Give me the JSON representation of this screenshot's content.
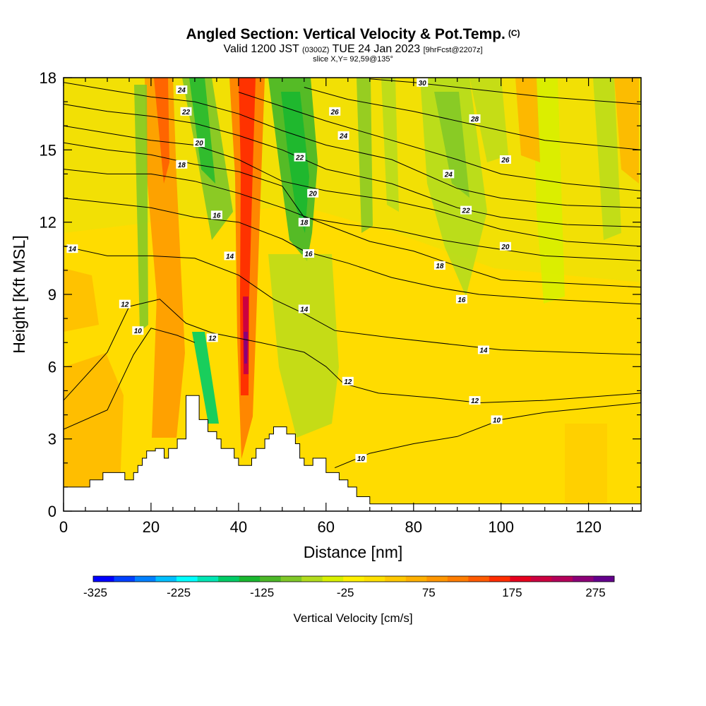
{
  "chart_data": {
    "type": "heatmap",
    "title": "Angled Section: Vertical Velocity & Pot.Temp.",
    "title_tag": "(C)",
    "subtitle": {
      "valid": "Valid 1200 JST",
      "utc": "(0300Z)",
      "date": "TUE 24 Jan 2023",
      "forecast": "[9hrFcst@2207z]"
    },
    "slice_note": "slice X,Y= 92,59@135°",
    "xlabel": "Distance [nm]",
    "ylabel": "Height [Kft MSL]",
    "xlim": [
      0,
      132
    ],
    "ylim": [
      0,
      18
    ],
    "x_ticks": [
      "0",
      "20",
      "40",
      "60",
      "80",
      "100",
      "120"
    ],
    "y_ticks": [
      "0",
      "3",
      "6",
      "9",
      "12",
      "15",
      "18"
    ],
    "colorbar": {
      "label": "Vertical Velocity [cm/s]",
      "range": [
        -325,
        300
      ],
      "step": 25,
      "tick_labels": [
        "-325",
        "-225",
        "-125",
        "-25",
        "75",
        "175",
        "275"
      ],
      "colors": [
        "#0000ff",
        "#0040ff",
        "#0080ff",
        "#00bfff",
        "#00ffff",
        "#00e6b4",
        "#00cc66",
        "#1ab830",
        "#4cb828",
        "#80c828",
        "#b2dc1e",
        "#d8f000",
        "#fff000",
        "#ffe000",
        "#ffc800",
        "#ffb000",
        "#ff9600",
        "#ff7d00",
        "#ff5a00",
        "#ff2d00",
        "#e6001e",
        "#cc0040",
        "#b4005a",
        "#8c0078",
        "#64008c"
      ]
    },
    "terrain": [
      [
        0,
        1.0
      ],
      [
        6,
        1.0
      ],
      [
        6,
        1.3
      ],
      [
        9,
        1.3
      ],
      [
        9,
        1.6
      ],
      [
        14,
        1.6
      ],
      [
        14,
        1.3
      ],
      [
        16,
        1.3
      ],
      [
        16,
        1.6
      ],
      [
        17,
        1.6
      ],
      [
        17,
        1.9
      ],
      [
        18,
        1.9
      ],
      [
        18,
        2.2
      ],
      [
        19,
        2.2
      ],
      [
        19,
        2.5
      ],
      [
        21,
        2.5
      ],
      [
        21,
        2.6
      ],
      [
        23,
        2.6
      ],
      [
        23,
        2.2
      ],
      [
        24,
        2.2
      ],
      [
        24,
        2.6
      ],
      [
        26,
        2.6
      ],
      [
        26,
        3.0
      ],
      [
        28,
        3.0
      ],
      [
        28,
        4.8
      ],
      [
        31,
        4.8
      ],
      [
        31,
        3.8
      ],
      [
        33,
        3.8
      ],
      [
        33,
        3.3
      ],
      [
        35,
        3.3
      ],
      [
        35,
        3.0
      ],
      [
        36,
        3.0
      ],
      [
        36,
        2.6
      ],
      [
        39,
        2.6
      ],
      [
        39,
        2.2
      ],
      [
        40,
        2.2
      ],
      [
        40,
        1.9
      ],
      [
        43,
        1.9
      ],
      [
        43,
        2.2
      ],
      [
        44,
        2.2
      ],
      [
        44,
        2.6
      ],
      [
        46,
        2.6
      ],
      [
        46,
        3.0
      ],
      [
        47,
        3.0
      ],
      [
        47,
        3.2
      ],
      [
        48,
        3.2
      ],
      [
        48,
        3.5
      ],
      [
        51,
        3.5
      ],
      [
        51,
        3.2
      ],
      [
        53,
        3.2
      ],
      [
        53,
        2.8
      ],
      [
        54,
        2.8
      ],
      [
        54,
        2.2
      ],
      [
        55,
        2.2
      ],
      [
        55,
        1.9
      ],
      [
        57,
        1.9
      ],
      [
        57,
        2.2
      ],
      [
        60,
        2.2
      ],
      [
        60,
        1.6
      ],
      [
        63,
        1.6
      ],
      [
        63,
        1.3
      ],
      [
        65,
        1.3
      ],
      [
        65,
        1.0
      ],
      [
        67,
        1.0
      ],
      [
        67,
        0.6
      ],
      [
        70,
        0.6
      ],
      [
        70,
        0.3
      ],
      [
        132,
        0.3
      ],
      [
        132,
        0
      ],
      [
        0,
        0
      ]
    ],
    "theta_contours": [
      {
        "label": "10",
        "points": [
          [
            0,
            3.4
          ],
          [
            10,
            4.2
          ],
          [
            16,
            6.5
          ],
          [
            20,
            7.6
          ],
          [
            26,
            7.3
          ],
          [
            30,
            7.0
          ]
        ]
      },
      {
        "label": "10",
        "points": [
          [
            62,
            1.8
          ],
          [
            70,
            2.4
          ],
          [
            80,
            2.8
          ],
          [
            90,
            3.1
          ],
          [
            100,
            3.8
          ],
          [
            110,
            4.1
          ],
          [
            132,
            4.5
          ]
        ]
      },
      {
        "label": "12",
        "points": [
          [
            0,
            4.6
          ],
          [
            10,
            6.6
          ],
          [
            15,
            8.5
          ],
          [
            22,
            8.8
          ],
          [
            28,
            7.8
          ],
          [
            34,
            7.4
          ],
          [
            45,
            7.0
          ],
          [
            55,
            6.6
          ],
          [
            60,
            6.0
          ],
          [
            64,
            5.3
          ],
          [
            72,
            4.9
          ],
          [
            85,
            4.7
          ],
          [
            95,
            4.5
          ],
          [
            110,
            4.6
          ],
          [
            132,
            4.9
          ]
        ]
      },
      {
        "label": "14",
        "points": [
          [
            0,
            11.0
          ],
          [
            10,
            10.6
          ],
          [
            20,
            10.6
          ],
          [
            30,
            10.5
          ],
          [
            40,
            9.8
          ],
          [
            48,
            8.8
          ],
          [
            55,
            8.2
          ],
          [
            62,
            7.5
          ],
          [
            75,
            7.2
          ],
          [
            90,
            6.9
          ],
          [
            100,
            6.7
          ],
          [
            115,
            6.6
          ],
          [
            132,
            6.5
          ]
        ]
      },
      {
        "label": "16",
        "points": [
          [
            0,
            13.0
          ],
          [
            10,
            12.8
          ],
          [
            20,
            12.6
          ],
          [
            30,
            12.2
          ],
          [
            40,
            12.0
          ],
          [
            50,
            11.3
          ],
          [
            55,
            10.8
          ],
          [
            65,
            10.3
          ],
          [
            75,
            9.7
          ],
          [
            85,
            9.3
          ],
          [
            95,
            9.0
          ],
          [
            110,
            8.8
          ],
          [
            132,
            8.6
          ]
        ]
      },
      {
        "label": "16",
        "points": [
          [
            0,
            14.2
          ],
          [
            10,
            14.0
          ],
          [
            20,
            14.0
          ],
          [
            30,
            13.7
          ],
          [
            40,
            13.2
          ],
          [
            50,
            12.6
          ],
          [
            60,
            11.9
          ],
          [
            70,
            11.2
          ],
          [
            80,
            10.8
          ],
          [
            88,
            10.3
          ],
          [
            100,
            9.6
          ],
          [
            132,
            9.3
          ]
        ]
      },
      {
        "label": "18",
        "points": [
          [
            0,
            15.3
          ],
          [
            10,
            15.0
          ],
          [
            20,
            14.8
          ],
          [
            30,
            14.4
          ],
          [
            40,
            14.1
          ],
          [
            50,
            13.5
          ],
          [
            55,
            12.2
          ],
          [
            65,
            11.9
          ],
          [
            75,
            11.7
          ],
          [
            85,
            11.3
          ],
          [
            95,
            11.0
          ],
          [
            110,
            10.6
          ],
          [
            132,
            10.4
          ]
        ]
      },
      {
        "label": "20",
        "points": [
          [
            0,
            16.0
          ],
          [
            10,
            15.7
          ],
          [
            20,
            15.4
          ],
          [
            30,
            15.2
          ],
          [
            40,
            14.6
          ],
          [
            50,
            13.7
          ],
          [
            60,
            13.3
          ],
          [
            75,
            12.9
          ],
          [
            85,
            12.5
          ],
          [
            100,
            11.7
          ],
          [
            115,
            11.2
          ],
          [
            132,
            11.0
          ]
        ]
      },
      {
        "label": "22",
        "points": [
          [
            0,
            16.9
          ],
          [
            10,
            16.6
          ],
          [
            20,
            16.4
          ],
          [
            30,
            16.1
          ],
          [
            40,
            15.6
          ],
          [
            50,
            15.0
          ],
          [
            60,
            14.2
          ],
          [
            75,
            13.6
          ],
          [
            90,
            12.6
          ],
          [
            100,
            12.2
          ],
          [
            115,
            11.9
          ],
          [
            132,
            11.8
          ]
        ]
      },
      {
        "label": "24",
        "points": [
          [
            0,
            17.8
          ],
          [
            10,
            17.5
          ],
          [
            20,
            17.2
          ],
          [
            30,
            17.0
          ],
          [
            40,
            16.5
          ],
          [
            50,
            15.8
          ],
          [
            60,
            15.2
          ],
          [
            75,
            14.6
          ],
          [
            90,
            13.4
          ],
          [
            100,
            13.0
          ],
          [
            115,
            12.7
          ],
          [
            132,
            12.6
          ]
        ]
      },
      {
        "label": "26",
        "points": [
          [
            40,
            17.4
          ],
          [
            50,
            16.8
          ],
          [
            60,
            16.2
          ],
          [
            75,
            15.4
          ],
          [
            90,
            14.6
          ],
          [
            100,
            14.0
          ],
          [
            115,
            13.6
          ],
          [
            132,
            13.3
          ]
        ]
      },
      {
        "label": "28",
        "points": [
          [
            55,
            17.6
          ],
          [
            65,
            17.1
          ],
          [
            80,
            16.6
          ],
          [
            95,
            16.0
          ],
          [
            110,
            15.4
          ],
          [
            132,
            15.0
          ]
        ]
      },
      {
        "label": "30",
        "points": [
          [
            70,
            17.95
          ],
          [
            80,
            17.8
          ],
          [
            95,
            17.5
          ],
          [
            110,
            17.2
          ],
          [
            132,
            16.9
          ]
        ]
      }
    ],
    "theta_labels": [
      {
        "label": "24",
        "x": 27,
        "y": 17.5
      },
      {
        "label": "22",
        "x": 28,
        "y": 16.6
      },
      {
        "label": "20",
        "x": 31,
        "y": 15.3
      },
      {
        "label": "18",
        "x": 27,
        "y": 14.4
      },
      {
        "label": "16",
        "x": 35,
        "y": 12.3
      },
      {
        "label": "14",
        "x": 2,
        "y": 10.9
      },
      {
        "label": "14",
        "x": 38,
        "y": 10.6
      },
      {
        "label": "12",
        "x": 14,
        "y": 8.6
      },
      {
        "label": "10",
        "x": 17,
        "y": 7.5
      },
      {
        "label": "12",
        "x": 34,
        "y": 7.2
      },
      {
        "label": "26",
        "x": 62,
        "y": 16.6
      },
      {
        "label": "24",
        "x": 64,
        "y": 15.6
      },
      {
        "label": "22",
        "x": 54,
        "y": 14.7
      },
      {
        "label": "20",
        "x": 57,
        "y": 13.2
      },
      {
        "label": "18",
        "x": 55,
        "y": 12.0
      },
      {
        "label": "16",
        "x": 56,
        "y": 10.7
      },
      {
        "label": "14",
        "x": 55,
        "y": 8.4
      },
      {
        "label": "12",
        "x": 65,
        "y": 5.4
      },
      {
        "label": "10",
        "x": 68,
        "y": 2.2
      },
      {
        "label": "30",
        "x": 82,
        "y": 17.8
      },
      {
        "label": "28",
        "x": 94,
        "y": 16.3
      },
      {
        "label": "26",
        "x": 101,
        "y": 14.6
      },
      {
        "label": "24",
        "x": 88,
        "y": 14.0
      },
      {
        "label": "22",
        "x": 92,
        "y": 12.5
      },
      {
        "label": "20",
        "x": 101,
        "y": 11.0
      },
      {
        "label": "18",
        "x": 86,
        "y": 10.2
      },
      {
        "label": "16",
        "x": 91,
        "y": 8.8
      },
      {
        "label": "14",
        "x": 96,
        "y": 6.7
      },
      {
        "label": "12",
        "x": 94,
        "y": 4.6
      },
      {
        "label": "10",
        "x": 99,
        "y": 3.8
      }
    ]
  }
}
